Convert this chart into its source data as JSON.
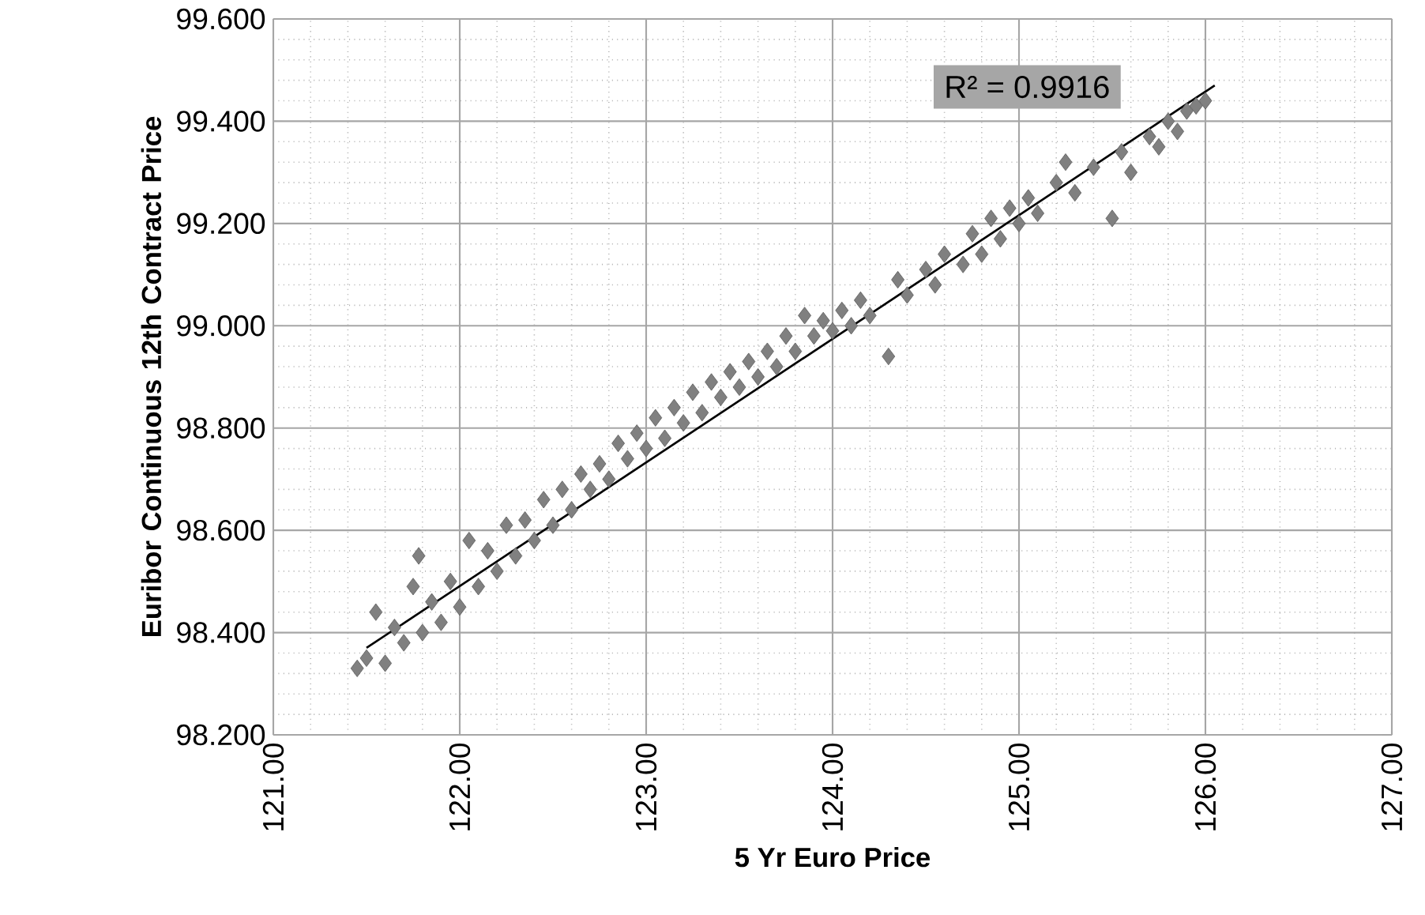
{
  "chart_data": {
    "type": "scatter",
    "xlabel": "5 Yr Euro Price",
    "ylabel": "Euribor Continuous 12th Contract Price",
    "annotations": [
      "R² = 0.9916"
    ],
    "xlim": [
      121,
      127
    ],
    "ylim": [
      98.2,
      99.6
    ],
    "xticks": [
      {
        "value": 121,
        "label": "121.00"
      },
      {
        "value": 122,
        "label": "122.00"
      },
      {
        "value": 123,
        "label": "123.00"
      },
      {
        "value": 124,
        "label": "124.00"
      },
      {
        "value": 125,
        "label": "125.00"
      },
      {
        "value": 126,
        "label": "126.00"
      },
      {
        "value": 127,
        "label": "127.00"
      }
    ],
    "yticks": [
      {
        "value": 98.2,
        "label": "98.200"
      },
      {
        "value": 98.4,
        "label": "98.400"
      },
      {
        "value": 98.6,
        "label": "98.600"
      },
      {
        "value": 98.8,
        "label": "98.800"
      },
      {
        "value": 99.0,
        "label": "99.000"
      },
      {
        "value": 99.2,
        "label": "99.200"
      },
      {
        "value": 99.4,
        "label": "99.400"
      },
      {
        "value": 99.6,
        "label": "99.600"
      }
    ],
    "grid": true,
    "marker": "diamond",
    "series": [
      {
        "color": "#808080",
        "x": [
          121.45,
          121.5,
          121.55,
          121.6,
          121.65,
          121.7,
          121.75,
          121.78,
          121.8,
          121.85,
          121.9,
          121.95,
          122.0,
          122.05,
          122.1,
          122.15,
          122.2,
          122.25,
          122.3,
          122.35,
          122.4,
          122.45,
          122.5,
          122.55,
          122.6,
          122.65,
          122.7,
          122.75,
          122.8,
          122.85,
          122.9,
          122.95,
          123.0,
          123.05,
          123.1,
          123.15,
          123.2,
          123.25,
          123.3,
          123.35,
          123.4,
          123.45,
          123.5,
          123.55,
          123.6,
          123.65,
          123.7,
          123.75,
          123.8,
          123.85,
          123.9,
          123.95,
          124.0,
          124.05,
          124.1,
          124.15,
          124.2,
          124.3,
          124.35,
          124.4,
          124.5,
          124.55,
          124.6,
          124.7,
          124.75,
          124.8,
          124.85,
          124.9,
          124.95,
          125.0,
          125.05,
          125.1,
          125.2,
          125.25,
          125.3,
          125.4,
          125.5,
          125.55,
          125.6,
          125.7,
          125.75,
          125.8,
          125.85,
          125.9,
          125.95,
          126.0
        ],
        "values": [
          98.33,
          98.35,
          98.44,
          98.34,
          98.41,
          98.38,
          98.49,
          98.55,
          98.4,
          98.46,
          98.42,
          98.5,
          98.45,
          98.58,
          98.49,
          98.56,
          98.52,
          98.61,
          98.55,
          98.62,
          98.58,
          98.66,
          98.61,
          98.68,
          98.64,
          98.71,
          98.68,
          98.73,
          98.7,
          98.77,
          98.74,
          98.79,
          98.76,
          98.82,
          98.78,
          98.84,
          98.81,
          98.87,
          98.83,
          98.89,
          98.86,
          98.91,
          98.88,
          98.93,
          98.9,
          98.95,
          98.92,
          98.98,
          98.95,
          99.02,
          98.98,
          99.01,
          98.99,
          99.03,
          99.0,
          99.05,
          99.02,
          98.94,
          99.09,
          99.06,
          99.11,
          99.08,
          99.14,
          99.12,
          99.18,
          99.14,
          99.21,
          99.17,
          99.23,
          99.2,
          99.25,
          99.22,
          99.28,
          99.32,
          99.26,
          99.31,
          99.21,
          99.34,
          99.3,
          99.37,
          99.35,
          99.4,
          99.38,
          99.42,
          99.43,
          99.44
        ]
      },
      {
        "type": "line",
        "color": "#000000",
        "marker": "none",
        "line_style": "solid",
        "x": [
          121.5,
          126.05
        ],
        "values": [
          98.37,
          99.47
        ]
      }
    ]
  }
}
